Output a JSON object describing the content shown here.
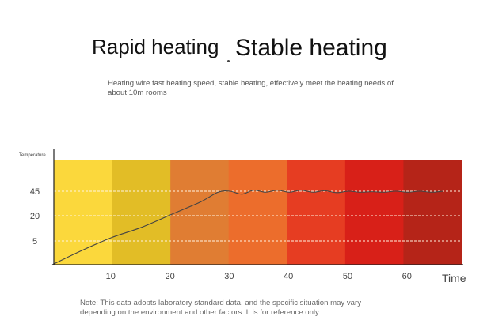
{
  "headline": {
    "left": "Rapid heating",
    "right": "Stable heating"
  },
  "subtitle": "Heating wire fast heating speed, stable heating, effectively meet the heating needs of about 10m rooms",
  "note": "Note: This data adopts laboratory standard data, and the specific situation may vary depending on the environment and other factors. It is for reference only.",
  "colors": {
    "bands": [
      "#fbd83c",
      "#e2bd26",
      "#e07d33",
      "#ec6d2c",
      "#e63d22",
      "#d82018",
      "#b52418"
    ],
    "curve": "#444444",
    "gridline": "#fff3e0",
    "axis": "#222222"
  },
  "chart_data": {
    "type": "line",
    "ylabel": "Temperature",
    "xlabel": "Time",
    "x_ticks": [
      10,
      20,
      30,
      40,
      50,
      60
    ],
    "y_ticks": [
      5,
      20,
      45
    ],
    "series": [
      {
        "x": [
          0,
          5,
          10,
          15,
          20,
          25,
          28,
          30,
          32,
          34,
          36,
          38,
          40,
          42,
          44,
          46,
          48,
          50,
          52,
          54,
          56,
          58,
          60,
          62,
          64,
          66
        ],
        "y": [
          0,
          3,
          7,
          13,
          21,
          34,
          44,
          45,
          42,
          46,
          44,
          46,
          44,
          46,
          44,
          45.5,
          43.5,
          45,
          44,
          44.5,
          44,
          45,
          44,
          45,
          44,
          45
        ]
      }
    ]
  }
}
